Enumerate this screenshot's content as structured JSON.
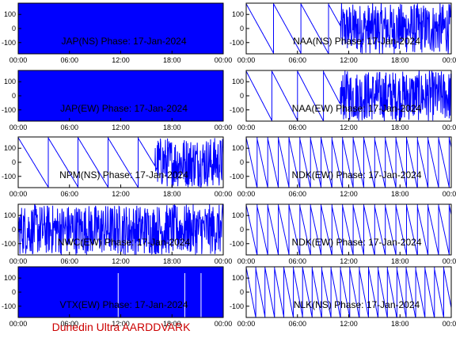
{
  "footer_text": "Dunedin Ultra AARDDVARK",
  "colors": {
    "trace": "#0000ff",
    "axis": "#000000",
    "background": "#ffffff",
    "footer": "#cc0000"
  },
  "chart_data": [
    {
      "type": "line",
      "title": "JAP(NS) Phase: 17-Jan-2024",
      "pattern": "solid",
      "x_ticks": [
        "00:00",
        "06:00",
        "12:00",
        "18:00",
        "00:00"
      ],
      "y_ticks": [
        100,
        0,
        -100
      ],
      "ylim": [
        -180,
        180
      ],
      "xlim_hours": [
        0,
        24
      ]
    },
    {
      "type": "line",
      "title": "NAA(NS) Phase: 17-Jan-2024",
      "pattern": "ramps_then_noise",
      "period_hours": 3.2,
      "noise_from_hour": 11,
      "x_ticks": [
        "00:00",
        "06:00",
        "12:00",
        "18:00",
        "00:00"
      ],
      "y_ticks": [
        100,
        0,
        -100
      ],
      "ylim": [
        -180,
        180
      ],
      "xlim_hours": [
        0,
        24
      ]
    },
    {
      "type": "line",
      "title": "JAP(EW) Phase: 17-Jan-2024",
      "pattern": "solid",
      "x_ticks": [
        "00:00",
        "06:00",
        "12:00",
        "18:00",
        "00:00"
      ],
      "y_ticks": [
        100,
        0,
        -100
      ],
      "ylim": [
        -180,
        180
      ],
      "xlim_hours": [
        0,
        24
      ]
    },
    {
      "type": "line",
      "title": "NAA(EW) Phase: 17-Jan-2024",
      "pattern": "ramps_then_noise",
      "period_hours": 3.0,
      "noise_from_hour": 11,
      "x_ticks": [
        "00:00",
        "06:00",
        "12:00",
        "18:00",
        "00:00"
      ],
      "y_ticks": [
        100,
        0,
        -100
      ],
      "ylim": [
        -180,
        180
      ],
      "xlim_hours": [
        0,
        24
      ]
    },
    {
      "type": "line",
      "title": "NPM(NS) Phase: 17-Jan-2024",
      "pattern": "ramps_then_noise",
      "period_hours": 3.5,
      "noise_from_hour": 16,
      "x_ticks": [
        "00:00",
        "06:00",
        "12:00",
        "18:00",
        "00:00"
      ],
      "y_ticks": [
        100,
        0,
        -100
      ],
      "ylim": [
        -180,
        180
      ],
      "xlim_hours": [
        0,
        24
      ]
    },
    {
      "type": "line",
      "title": "NDK(EW) Phase: 17-Jan-2024",
      "pattern": "sawtooth",
      "period_hours": 1.25,
      "x_ticks": [
        "00:00",
        "06:00",
        "12:00",
        "18:00",
        "00:00"
      ],
      "y_ticks": [
        100,
        0,
        -100
      ],
      "ylim": [
        -180,
        180
      ],
      "xlim_hours": [
        0,
        24
      ]
    },
    {
      "type": "line",
      "title": "NWC(EW) Phase: 17-Jan-2024",
      "pattern": "noise",
      "x_ticks": [
        "00:00",
        "06:00",
        "12:00",
        "18:00",
        "00:00"
      ],
      "y_ticks": [
        100,
        0,
        -100
      ],
      "ylim": [
        -180,
        180
      ],
      "xlim_hours": [
        0,
        24
      ]
    },
    {
      "type": "line",
      "title": "NDK(EW) Phase: 17-Jan-2024",
      "pattern": "sawtooth",
      "period_hours": 1.25,
      "x_ticks": [
        "00:00",
        "06:00",
        "12:00",
        "18:00",
        "00:00"
      ],
      "y_ticks": [
        100,
        0,
        -100
      ],
      "ylim": [
        -180,
        180
      ],
      "xlim_hours": [
        0,
        24
      ]
    },
    {
      "type": "line",
      "title": "VTX(EW) Phase: 17-Jan-2024",
      "pattern": "solid",
      "x_ticks": [
        "00:00",
        "06:00",
        "12:00",
        "18:00",
        "00:00"
      ],
      "y_ticks": [
        100,
        0,
        -100
      ],
      "ylim": [
        -180,
        180
      ],
      "xlim_hours": [
        0,
        24
      ]
    },
    {
      "type": "line",
      "title": "NLK(NS) Phase: 17-Jan-2024",
      "pattern": "sawtooth",
      "period_hours": 1.1,
      "x_ticks": [
        "00:00",
        "06:00",
        "12:00",
        "18:00",
        "00:00"
      ],
      "y_ticks": [
        100,
        0,
        -100
      ],
      "ylim": [
        -180,
        180
      ],
      "xlim_hours": [
        0,
        24
      ]
    }
  ]
}
